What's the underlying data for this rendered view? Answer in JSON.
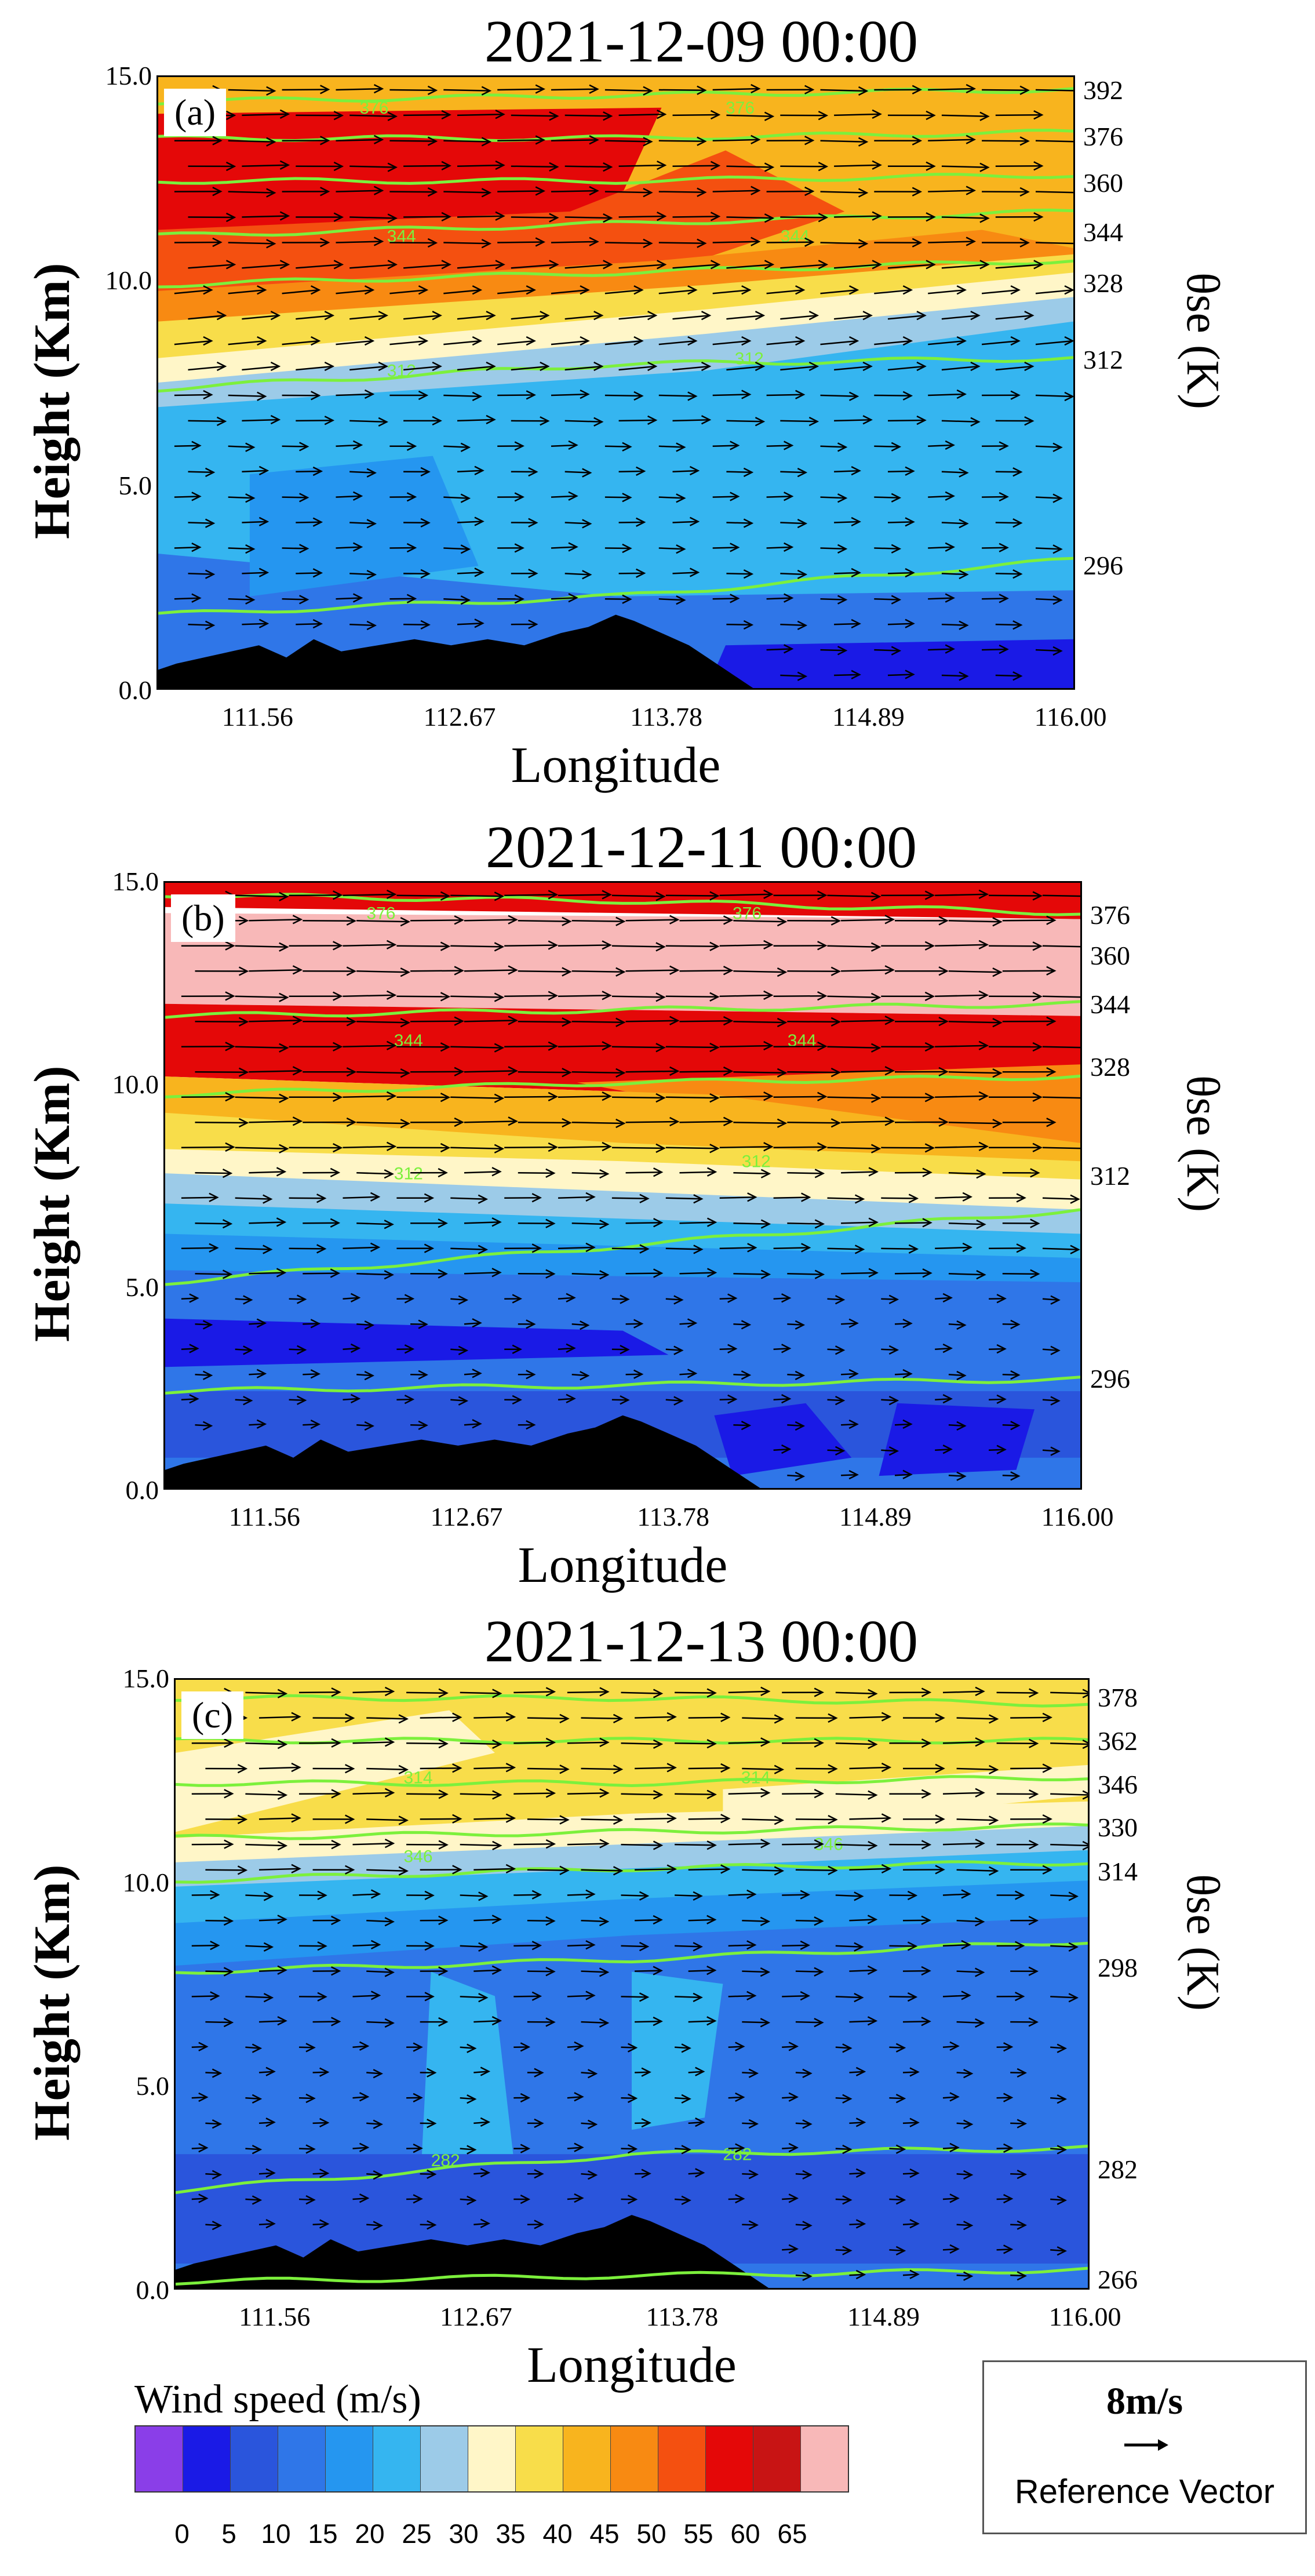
{
  "chart_data": [
    {
      "type": "contour-vector-cross-section",
      "panel": "(a)",
      "title": "2021-12-09 00:00",
      "xlabel": "Longitude",
      "ylabel": "Height (Km)",
      "right_label": "θse (K)",
      "x_ticks": [
        "111.56",
        "112.67",
        "113.78",
        "114.89",
        "116.00"
      ],
      "y_ticks": [
        "15.0",
        "10.0",
        "5.0",
        "0.0"
      ],
      "xlim": [
        111.0,
        116.0
      ],
      "ylim": [
        0,
        15
      ],
      "theta_se_levels": [
        "392",
        "376",
        "360",
        "344",
        "328",
        "312",
        "296"
      ],
      "inline_contour_labels": [
        "376",
        "376",
        "344",
        "344",
        "312",
        "312"
      ],
      "dominant_wind": "westerly",
      "max_speed_band": "55-60 m/s near 12-14 km, west side"
    },
    {
      "type": "contour-vector-cross-section",
      "panel": "(b)",
      "title": "2021-12-11 00:00",
      "xlabel": "Longitude",
      "ylabel": "Height (Km)",
      "right_label": "θse (K)",
      "x_ticks": [
        "111.56",
        "112.67",
        "113.78",
        "114.89",
        "116.00"
      ],
      "y_ticks": [
        "15.0",
        "10.0",
        "5.0",
        "0.0"
      ],
      "xlim": [
        111.0,
        116.0
      ],
      "ylim": [
        0,
        15
      ],
      "theta_se_levels": [
        "376",
        "360",
        "344",
        "328",
        "312",
        "296"
      ],
      "inline_contour_labels": [
        "376",
        "376",
        "344",
        "344",
        "312",
        "312"
      ],
      "dominant_wind": "westerly",
      "max_speed_band": ">65 m/s near 12-14 km"
    },
    {
      "type": "contour-vector-cross-section",
      "panel": "(c)",
      "title": "2021-12-13 00:00",
      "xlabel": "Longitude",
      "ylabel": "Height (Km)",
      "right_label": "θse (K)",
      "x_ticks": [
        "111.56",
        "112.67",
        "113.78",
        "114.89",
        "116.00"
      ],
      "y_ticks": [
        "15.0",
        "10.0",
        "5.0",
        "0.0"
      ],
      "xlim": [
        111.0,
        116.0
      ],
      "ylim": [
        0,
        15
      ],
      "theta_se_levels": [
        "378",
        "362",
        "346",
        "330",
        "314",
        "298",
        "282",
        "266"
      ],
      "inline_contour_labels": [
        "346",
        "346",
        "314",
        "314",
        "282",
        "282"
      ],
      "dominant_wind": "westerly",
      "max_speed_band": "40-45 m/s near 13-15 km"
    }
  ],
  "legend": {
    "title": "Wind speed (m/s)",
    "ticks": [
      "0",
      "5",
      "10",
      "15",
      "20",
      "25",
      "30",
      "35",
      "40",
      "45",
      "50",
      "55",
      "60",
      "65"
    ],
    "colors": [
      "#8a3ee8",
      "#1a1ae6",
      "#2a55dc",
      "#2f76e8",
      "#2596f0",
      "#35b5f0",
      "#9ccbe8",
      "#fff6c8",
      "#f8dd4a",
      "#f8b41e",
      "#f88a12",
      "#f45010",
      "#e40808",
      "#c81414",
      "#f8b8b8"
    ]
  },
  "reference_vector": {
    "speed": "8m/s",
    "label": "Reference Vector"
  },
  "colors": {
    "contour_line": "#7cf03c",
    "terrain": "#000000",
    "arrow": "#000000"
  }
}
